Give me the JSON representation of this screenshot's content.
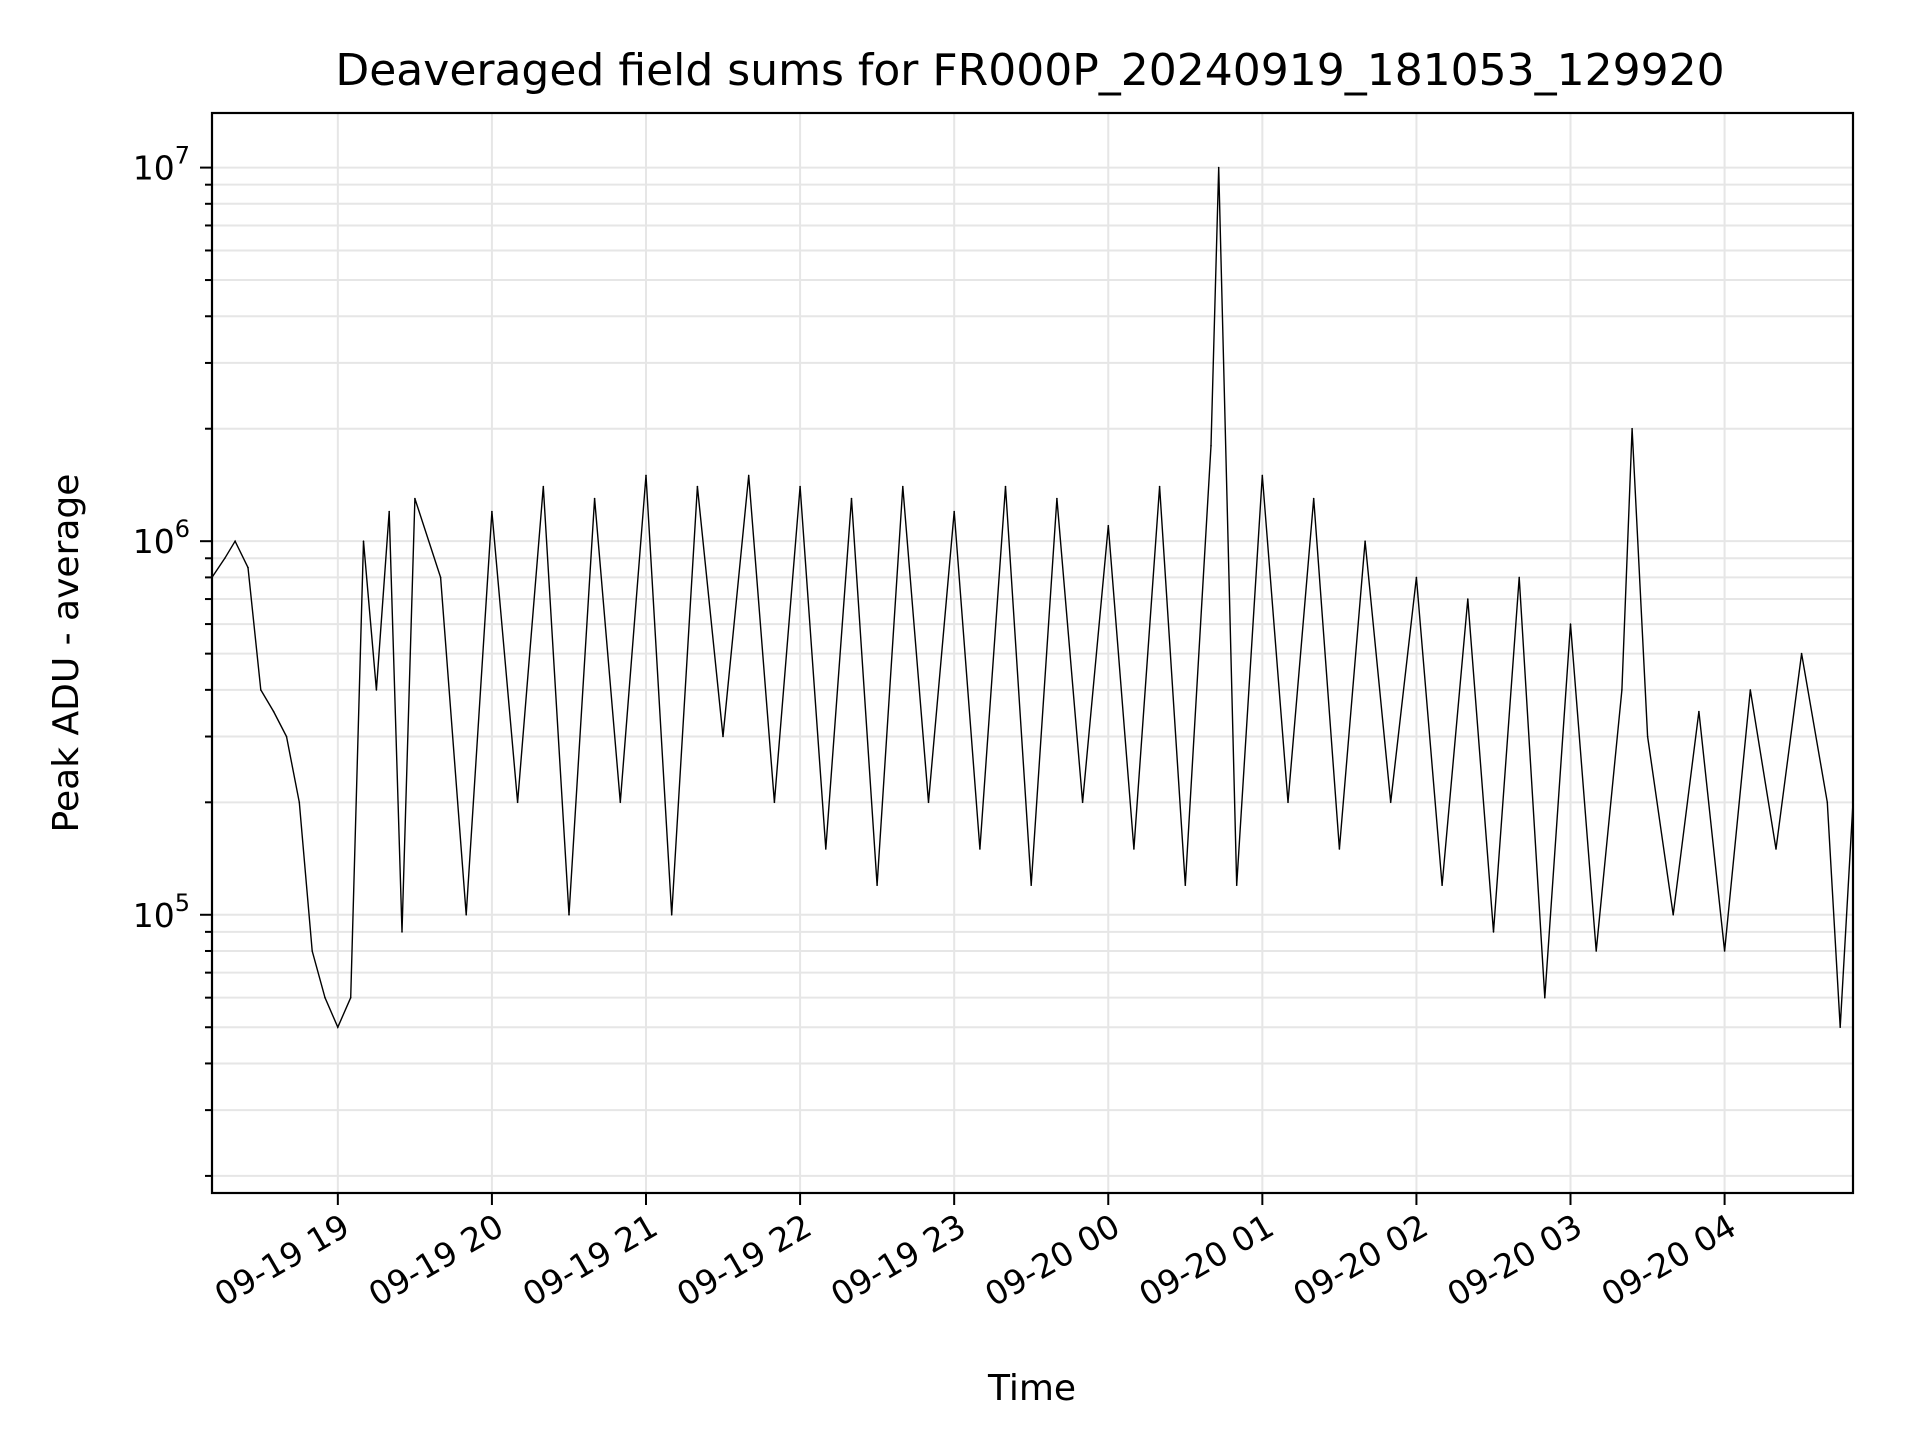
{
  "chart_data": {
    "type": "line",
    "title": "Deaveraged field sums for FR000P_20240919_181053_129920",
    "xlabel": "Time",
    "ylabel": "Peak ADU - average",
    "yscale": "log",
    "ylim": [
      18000,
      14000000
    ],
    "xlim": [
      "2024-09-19 18:11",
      "2024-09-20 04:50"
    ],
    "x_tick_labels": [
      "09-19 19",
      "09-19 20",
      "09-19 21",
      "09-19 22",
      "09-19 23",
      "09-20 00",
      "09-20 01",
      "09-20 02",
      "09-20 03",
      "09-20 04"
    ],
    "y_ticks": [
      {
        "base": "10",
        "exp": "5",
        "value": 100000
      },
      {
        "base": "10",
        "exp": "6",
        "value": 1000000
      },
      {
        "base": "10",
        "exp": "7",
        "value": 10000000
      }
    ],
    "grid": true,
    "line_color": "#000000",
    "series": [
      {
        "x": [
          "2024-09-19 18:11",
          "2024-09-19 18:16",
          "2024-09-19 18:20",
          "2024-09-19 18:25",
          "2024-09-19 18:30",
          "2024-09-19 18:35",
          "2024-09-19 18:40",
          "2024-09-19 18:45",
          "2024-09-19 18:50",
          "2024-09-19 18:55",
          "2024-09-19 19:00",
          "2024-09-19 19:05",
          "2024-09-19 19:10",
          "2024-09-19 19:15",
          "2024-09-19 19:20",
          "2024-09-19 19:25",
          "2024-09-19 19:30",
          "2024-09-19 19:40",
          "2024-09-19 19:50",
          "2024-09-19 20:00",
          "2024-09-19 20:10",
          "2024-09-19 20:20",
          "2024-09-19 20:30",
          "2024-09-19 20:40",
          "2024-09-19 20:50",
          "2024-09-19 21:00",
          "2024-09-19 21:10",
          "2024-09-19 21:20",
          "2024-09-19 21:30",
          "2024-09-19 21:40",
          "2024-09-19 21:50",
          "2024-09-19 22:00",
          "2024-09-19 22:10",
          "2024-09-19 22:20",
          "2024-09-19 22:30",
          "2024-09-19 22:40",
          "2024-09-19 22:50",
          "2024-09-19 23:00",
          "2024-09-19 23:10",
          "2024-09-19 23:20",
          "2024-09-19 23:30",
          "2024-09-19 23:40",
          "2024-09-19 23:50",
          "2024-09-20 00:00",
          "2024-09-20 00:10",
          "2024-09-20 00:20",
          "2024-09-20 00:30",
          "2024-09-20 00:40",
          "2024-09-20 00:43",
          "2024-09-20 00:50",
          "2024-09-20 01:00",
          "2024-09-20 01:10",
          "2024-09-20 01:20",
          "2024-09-20 01:30",
          "2024-09-20 01:40",
          "2024-09-20 01:50",
          "2024-09-20 02:00",
          "2024-09-20 02:10",
          "2024-09-20 02:20",
          "2024-09-20 02:30",
          "2024-09-20 02:40",
          "2024-09-20 02:50",
          "2024-09-20 03:00",
          "2024-09-20 03:10",
          "2024-09-20 03:20",
          "2024-09-20 03:24",
          "2024-09-20 03:30",
          "2024-09-20 03:40",
          "2024-09-20 03:50",
          "2024-09-20 04:00",
          "2024-09-20 04:10",
          "2024-09-20 04:20",
          "2024-09-20 04:30",
          "2024-09-20 04:40",
          "2024-09-20 04:45",
          "2024-09-20 04:50"
        ],
        "y": [
          800000,
          900000,
          1000000,
          850000,
          400000,
          350000,
          300000,
          200000,
          80000,
          60000,
          50000,
          60000,
          1000000,
          400000,
          1200000,
          90000,
          1300000,
          800000,
          100000,
          1200000,
          200000,
          1400000,
          100000,
          1300000,
          200000,
          1500000,
          100000,
          1400000,
          300000,
          1500000,
          200000,
          1400000,
          150000,
          1300000,
          120000,
          1400000,
          200000,
          1200000,
          150000,
          1400000,
          120000,
          1300000,
          200000,
          1100000,
          150000,
          1400000,
          120000,
          1800000,
          10000000,
          120000,
          1500000,
          200000,
          1300000,
          150000,
          1000000,
          200000,
          800000,
          120000,
          700000,
          90000,
          800000,
          60000,
          600000,
          80000,
          400000,
          2000000,
          300000,
          100000,
          350000,
          80000,
          400000,
          150000,
          500000,
          200000,
          50000,
          200000
        ]
      }
    ]
  }
}
